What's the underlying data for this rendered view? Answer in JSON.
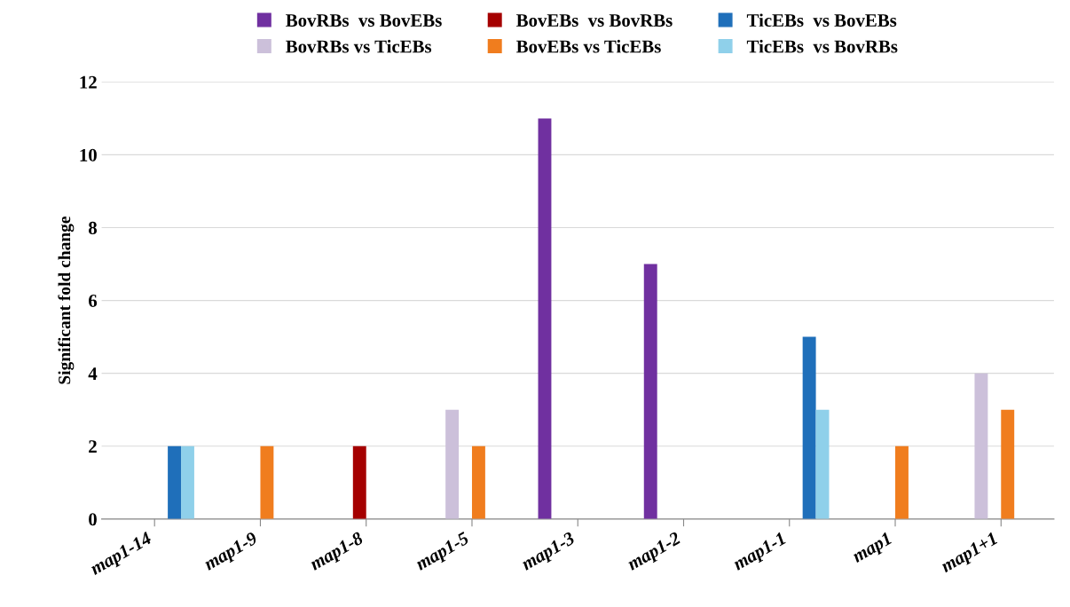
{
  "chart_data": {
    "type": "bar",
    "ylabel": "Significant fold change",
    "categories": [
      "map1-14",
      "map1-9",
      "map1-8",
      "map1-5",
      "map1-3",
      "map1-2",
      "map1-1",
      "map1",
      "map1+1"
    ],
    "series": [
      {
        "name": "BovRBs  vs BovEBs",
        "color": "#7030a0",
        "values": [
          0,
          0,
          0,
          0,
          11,
          7,
          0,
          0,
          0
        ]
      },
      {
        "name": "BovRBs vs TicEBs",
        "color": "#ccc0da",
        "values": [
          0,
          0,
          0,
          3,
          0,
          0,
          0,
          0,
          4
        ]
      },
      {
        "name": "BovEBs  vs BovRBs",
        "color": "#a50000",
        "values": [
          0,
          0,
          2,
          0,
          0,
          0,
          0,
          0,
          0
        ]
      },
      {
        "name": "BovEBs vs TicEBs",
        "color": "#f07d1e",
        "values": [
          0,
          2,
          0,
          2,
          0,
          0,
          0,
          2,
          3
        ]
      },
      {
        "name": "TicEBs  vs BovEBs",
        "color": "#1f6fba",
        "values": [
          2,
          0,
          0,
          0,
          0,
          0,
          5,
          0,
          0
        ]
      },
      {
        "name": "TicEBs  vs BovRBs",
        "color": "#8fd0ea",
        "values": [
          2,
          0,
          0,
          0,
          0,
          0,
          3,
          0,
          0
        ]
      }
    ],
    "ylim": [
      0,
      12
    ],
    "yticks": [
      0,
      2,
      4,
      6,
      8,
      10,
      12
    ],
    "grid": "y",
    "legend": "top"
  }
}
